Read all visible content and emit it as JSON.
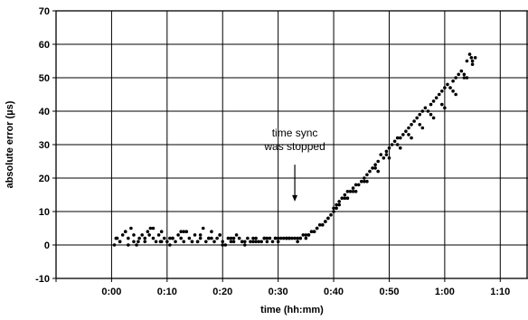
{
  "chart_data": {
    "type": "scatter",
    "title": "",
    "xlabel": "time (hh:mm)",
    "ylabel": "absolute error (µs)",
    "xlim": [
      -10,
      75
    ],
    "ylim": [
      -10,
      70
    ],
    "x_ticks": [
      -10,
      0,
      10,
      20,
      30,
      40,
      50,
      60,
      70
    ],
    "x_tick_labels": [
      "",
      "0:00",
      "0:10",
      "0:20",
      "0:30",
      "0:40",
      "0:50",
      "1:00",
      "1:10"
    ],
    "y_ticks": [
      -10,
      0,
      10,
      20,
      30,
      40,
      50,
      60,
      70
    ],
    "y_tick_labels": [
      "-10",
      "0",
      "10",
      "20",
      "30",
      "40",
      "50",
      "60",
      "70"
    ],
    "grid": true,
    "legend": "none",
    "marker_color": "#000000",
    "annotation": {
      "lines": [
        "time sync",
        "was stopped"
      ],
      "arrow_x": 33,
      "arrow_from_y": 24,
      "arrow_to_y": 13
    },
    "series": [
      {
        "x": [
          0.5,
          1,
          1.5,
          2,
          2.5,
          3,
          3.5,
          4,
          4.5,
          5,
          5.5,
          6,
          6.5,
          7,
          7.5,
          8,
          8.5,
          9,
          9.5,
          10,
          10.5,
          11,
          11.5,
          12,
          12.5,
          13,
          13.5,
          14,
          14.5,
          15,
          15.5,
          16,
          16.5,
          17,
          17.5,
          18,
          18.5,
          19,
          19.5,
          20,
          20.5,
          21,
          21.5,
          22,
          22.5,
          23,
          23.5,
          24,
          24.5,
          25,
          25.5,
          26,
          26.5,
          27,
          27.5,
          28,
          28.5,
          29,
          29.5,
          30,
          30.5,
          31,
          31.5,
          32,
          32.5,
          33,
          33.5,
          34,
          34.5,
          35,
          35.5,
          36,
          36.5,
          37,
          37.5,
          38,
          38.5,
          39,
          39.5,
          40,
          40.5,
          41,
          41.5,
          42,
          42.5,
          43,
          43.5,
          44,
          44.5,
          45,
          45.5,
          46,
          46.5,
          47,
          47.5,
          48,
          48.5,
          49,
          49.5,
          50,
          50.5,
          51,
          51.5,
          52,
          52.5,
          53,
          53.5,
          54,
          54.5,
          55,
          55.5,
          56,
          56.5,
          57,
          57.5,
          58,
          58.5,
          59,
          59.5,
          60,
          60.5,
          61,
          61.5,
          62,
          62.5,
          63,
          63.5,
          64,
          64.5,
          65,
          65.5,
          1.5,
          3,
          4,
          6,
          7.5,
          9,
          11,
          13,
          14.5,
          16,
          18,
          20,
          22,
          24,
          26,
          28,
          30,
          32,
          34,
          35,
          36.5,
          38,
          39,
          40,
          41,
          42.5,
          44,
          46,
          48,
          50,
          52,
          54,
          56,
          58,
          60,
          62,
          64,
          65,
          0.8,
          2.5,
          4.8,
          6.8,
          8.8,
          10.5,
          12.5,
          15.5,
          17.5,
          19.5,
          21.5,
          23.5,
          25.5,
          27.5,
          29.5,
          31.5,
          33.5,
          35.5,
          37,
          38.5,
          40.5,
          42,
          43.5,
          45.5,
          47.5,
          49.5,
          51.5,
          53.5,
          55.5,
          57.5,
          59.5,
          61.5,
          63.5,
          64.8
        ],
        "y": [
          0,
          2,
          1,
          3,
          4,
          2,
          5,
          1,
          0,
          2,
          3,
          1,
          4,
          5,
          2,
          1,
          3,
          4,
          2,
          1,
          0,
          2,
          1,
          3,
          2,
          1,
          4,
          2,
          1,
          3,
          1,
          2,
          5,
          1,
          2,
          4,
          1,
          2,
          3,
          1,
          0,
          2,
          1,
          1,
          3,
          2,
          1,
          0,
          2,
          1,
          1,
          2,
          1,
          1,
          2,
          1,
          2,
          1,
          2,
          1,
          2,
          2,
          2,
          2,
          2,
          2,
          2,
          2,
          3,
          2,
          3,
          4,
          4,
          5,
          6,
          6,
          7,
          8,
          9,
          11,
          12,
          13,
          14,
          15,
          16,
          16,
          17,
          18,
          18,
          19,
          20,
          21,
          22,
          23,
          24,
          25,
          27,
          26,
          28,
          29,
          30,
          31,
          32,
          32,
          33,
          34,
          35,
          36,
          37,
          38,
          39,
          40,
          41,
          40,
          42,
          43,
          44,
          45,
          46,
          47,
          48,
          47,
          49,
          50,
          51,
          52,
          50,
          55,
          57,
          54,
          56,
          1,
          0,
          3,
          2,
          5,
          1,
          2,
          4,
          1,
          3,
          2,
          0,
          2,
          1,
          1,
          2,
          2,
          2,
          2,
          3,
          4,
          6,
          8,
          10,
          12,
          14,
          16,
          19,
          22,
          26,
          29,
          32,
          35,
          38,
          41,
          45,
          50,
          55,
          2,
          4,
          1,
          3,
          1,
          2,
          4,
          1,
          2,
          3,
          2,
          1,
          2,
          2,
          2,
          2,
          1,
          3,
          5,
          7,
          11,
          14,
          16,
          19,
          23,
          27,
          30,
          33,
          36,
          39,
          42,
          46,
          51,
          56
        ]
      }
    ]
  }
}
